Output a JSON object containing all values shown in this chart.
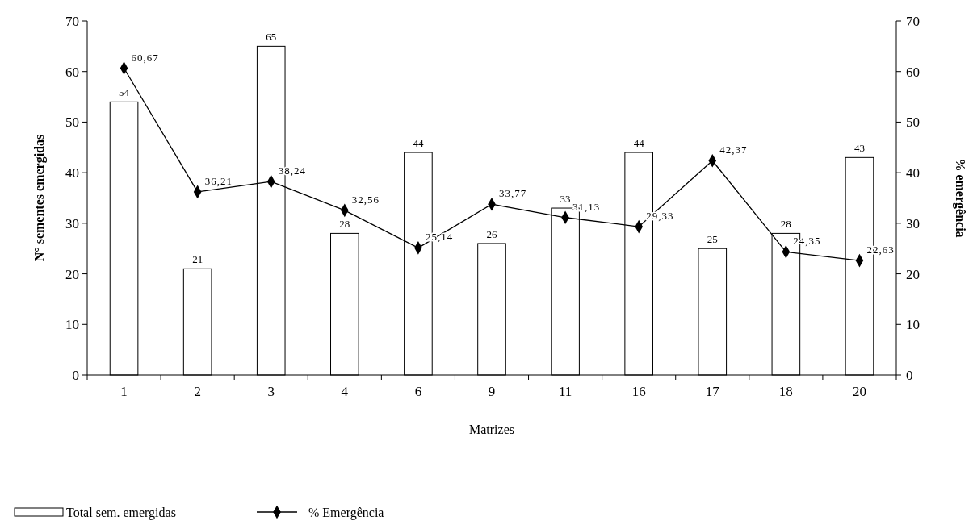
{
  "chart_data": {
    "type": "bar",
    "xlabel": "Matrizes",
    "ylabel": "N° sementes emergidas",
    "y2label": "% emergência",
    "categories": [
      "1",
      "2",
      "3",
      "4",
      "6",
      "9",
      "11",
      "16",
      "17",
      "18",
      "20"
    ],
    "series": [
      {
        "name": "Total sem. emergidas",
        "color": "#ffffff",
        "values": [
          54,
          21,
          65,
          28,
          44,
          26,
          33,
          44,
          25,
          28,
          43
        ],
        "value_labels": [
          "54",
          "21",
          "65",
          "28",
          "44",
          "26",
          "33",
          "44",
          "25",
          "28",
          "43"
        ]
      },
      {
        "name": "% Emergência",
        "type": "line",
        "axis": "y2",
        "color": "#000000",
        "marker": "diamond",
        "values": [
          60.67,
          36.21,
          38.24,
          32.56,
          25.14,
          33.77,
          31.13,
          29.33,
          42.37,
          24.35,
          22.63
        ],
        "value_labels": [
          "60,67",
          "36,21",
          "38,24",
          "32,56",
          "25,14",
          "33,77",
          "31,13",
          "29,33",
          "42,37",
          "24,35",
          "22,63"
        ]
      }
    ],
    "ylim": [
      0,
      70
    ],
    "yticks": [
      0,
      10,
      20,
      30,
      40,
      50,
      60,
      70
    ],
    "y2lim": [
      0,
      70
    ],
    "y2ticks": [
      0,
      10,
      20,
      30,
      40,
      50,
      60,
      70
    ],
    "grid": false,
    "legend": "bottom left"
  }
}
